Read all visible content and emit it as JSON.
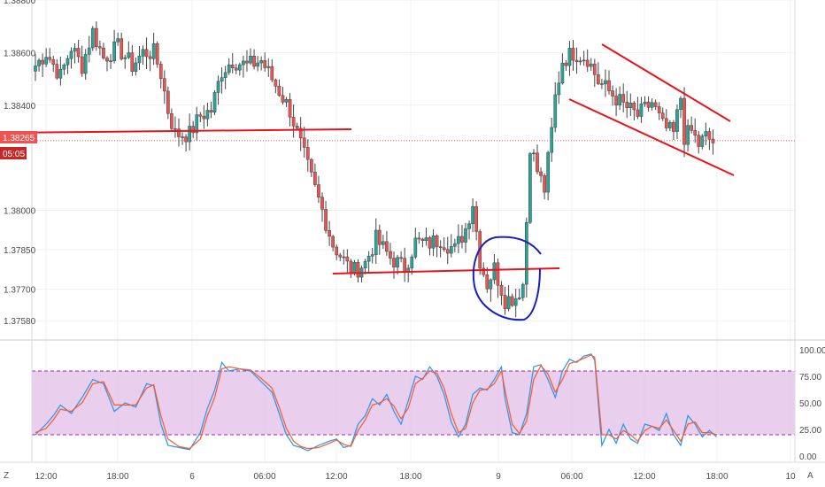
{
  "colors": {
    "up": "#26a69a",
    "down": "#ef5350",
    "wick": "#444444",
    "annotation_red": "#e8141b",
    "annotation_blue": "#1a1fc4",
    "stoch_k": "#2196f3",
    "stoch_d": "#ff5722",
    "stoch_band": "#e1bee7",
    "stoch_band_line": "#9c27b0",
    "grid": "#eef0f4",
    "price_line": "#ef5350",
    "badge_bg": "#ef5350",
    "badge_time_bg": "#c62828"
  },
  "chart_data": [
    {
      "type": "candlestick",
      "title": "",
      "ylim": [
        1.3752,
        1.388
      ],
      "y_tick_labels": [
        "1.38800",
        "1.38600",
        "1.38400",
        "1.38000",
        "1.37850",
        "1.37700",
        "1.37580"
      ],
      "y_tick_values": [
        1.388,
        1.386,
        1.384,
        1.38,
        1.3785,
        1.377,
        1.3758
      ],
      "x_tick_labels": [
        "12:00",
        "18:00",
        "6",
        "06:00",
        "12:00",
        "18:00",
        "9",
        "06:00",
        "12:00",
        "18:00",
        "10"
      ],
      "current_price": "1.38265",
      "countdown": "05:05",
      "path": [
        [
          0,
          1.3855
        ],
        [
          3,
          1.386
        ],
        [
          7,
          1.3851
        ],
        [
          10,
          1.3862
        ],
        [
          13,
          1.3855
        ],
        [
          16,
          1.3868
        ],
        [
          19,
          1.3858
        ],
        [
          23,
          1.3862
        ],
        [
          27,
          1.3855
        ],
        [
          30,
          1.386
        ],
        [
          33,
          1.386
        ],
        [
          35,
          1.3852
        ],
        [
          37,
          1.3838
        ],
        [
          39,
          1.3829
        ],
        [
          43,
          1.3829
        ],
        [
          46,
          1.3836
        ],
        [
          49,
          1.3838
        ],
        [
          52,
          1.3853
        ],
        [
          55,
          1.3857
        ],
        [
          59,
          1.3855
        ],
        [
          63,
          1.3857
        ],
        [
          66,
          1.385
        ],
        [
          69,
          1.3843
        ],
        [
          71,
          1.3838
        ],
        [
          74,
          1.3825
        ],
        [
          77,
          1.3812
        ],
        [
          80,
          1.38
        ],
        [
          83,
          1.3787
        ],
        [
          87,
          1.3779
        ],
        [
          89,
          1.3777
        ],
        [
          92,
          1.378
        ],
        [
          95,
          1.3789
        ],
        [
          99,
          1.3782
        ],
        [
          103,
          1.3778
        ],
        [
          106,
          1.3788
        ],
        [
          109,
          1.3787
        ],
        [
          113,
          1.3789
        ],
        [
          117,
          1.3785
        ],
        [
          120,
          1.3793
        ],
        [
          122,
          1.3803
        ],
        [
          124,
          1.3781
        ],
        [
          126,
          1.3772
        ],
        [
          128,
          1.3778
        ],
        [
          131,
          1.3766
        ],
        [
          134,
          1.3767
        ],
        [
          136,
          1.3772
        ],
        [
          137,
          1.3796
        ],
        [
          138,
          1.3825
        ],
        [
          140,
          1.3815
        ],
        [
          142,
          1.3808
        ],
        [
          144,
          1.383
        ],
        [
          145,
          1.3843
        ],
        [
          147,
          1.3857
        ],
        [
          150,
          1.386
        ],
        [
          154,
          1.3858
        ],
        [
          157,
          1.3849
        ],
        [
          161,
          1.3844
        ],
        [
          164,
          1.384
        ],
        [
          168,
          1.3836
        ],
        [
          172,
          1.3841
        ],
        [
          175,
          1.3832
        ],
        [
          178,
          1.3829
        ],
        [
          180,
          1.3843
        ],
        [
          181,
          1.3828
        ],
        [
          183,
          1.383
        ],
        [
          185,
          1.3825
        ],
        [
          187,
          1.3828
        ],
        [
          189,
          1.3826
        ]
      ]
    },
    {
      "type": "line",
      "title": "",
      "ylim": [
        0,
        100
      ],
      "y_tick_labels": [
        "100.00",
        "75.00",
        "50.00",
        "25.00",
        "0.00"
      ],
      "y_tick_values": [
        100,
        75,
        50,
        25,
        0
      ],
      "band": [
        20,
        80
      ],
      "series": [
        {
          "values": [
            [
              0,
              20
            ],
            [
              3,
              30
            ],
            [
              5,
              38
            ],
            [
              7,
              48
            ],
            [
              10,
              40
            ],
            [
              13,
              55
            ],
            [
              16,
              72
            ],
            [
              19,
              68
            ],
            [
              22,
              42
            ],
            [
              25,
              50
            ],
            [
              28,
              46
            ],
            [
              31,
              68
            ],
            [
              33,
              66
            ],
            [
              35,
              30
            ],
            [
              37,
              10
            ],
            [
              40,
              8
            ],
            [
              43,
              6
            ],
            [
              46,
              22
            ],
            [
              48,
              45
            ],
            [
              50,
              62
            ],
            [
              52,
              88
            ],
            [
              54,
              80
            ],
            [
              57,
              82
            ],
            [
              60,
              80
            ],
            [
              63,
              70
            ],
            [
              66,
              60
            ],
            [
              68,
              40
            ],
            [
              70,
              20
            ],
            [
              72,
              10
            ],
            [
              74,
              8
            ],
            [
              76,
              5
            ],
            [
              79,
              10
            ],
            [
              82,
              14
            ],
            [
              84,
              16
            ],
            [
              86,
              8
            ],
            [
              88,
              10
            ],
            [
              90,
              30
            ],
            [
              92,
              38
            ],
            [
              94,
              54
            ],
            [
              96,
              48
            ],
            [
              98,
              58
            ],
            [
              100,
              42
            ],
            [
              102,
              30
            ],
            [
              104,
              52
            ],
            [
              106,
              75
            ],
            [
              108,
              72
            ],
            [
              110,
              84
            ],
            [
              112,
              75
            ],
            [
              114,
              58
            ],
            [
              116,
              32
            ],
            [
              118,
              18
            ],
            [
              120,
              30
            ],
            [
              122,
              58
            ],
            [
              124,
              64
            ],
            [
              126,
              62
            ],
            [
              128,
              72
            ],
            [
              130,
              84
            ],
            [
              131,
              54
            ],
            [
              133,
              22
            ],
            [
              135,
              20
            ],
            [
              137,
              40
            ],
            [
              139,
              84
            ],
            [
              141,
              86
            ],
            [
              143,
              72
            ],
            [
              145,
              55
            ],
            [
              147,
              80
            ],
            [
              149,
              91
            ],
            [
              151,
              88
            ],
            [
              153,
              94
            ],
            [
              155,
              96
            ],
            [
              156,
              90
            ],
            [
              158,
              10
            ],
            [
              160,
              25
            ],
            [
              162,
              12
            ],
            [
              164,
              30
            ],
            [
              166,
              16
            ],
            [
              168,
              12
            ],
            [
              170,
              30
            ],
            [
              172,
              28
            ],
            [
              174,
              24
            ],
            [
              176,
              40
            ],
            [
              178,
              20
            ],
            [
              180,
              10
            ],
            [
              182,
              38
            ],
            [
              184,
              30
            ],
            [
              186,
              18
            ],
            [
              188,
              24
            ],
            [
              190,
              18
            ]
          ]
        },
        {
          "values": [
            [
              0,
              22
            ],
            [
              3,
              26
            ],
            [
              5,
              34
            ],
            [
              7,
              44
            ],
            [
              10,
              42
            ],
            [
              13,
              50
            ],
            [
              16,
              68
            ],
            [
              19,
              70
            ],
            [
              22,
              48
            ],
            [
              25,
              48
            ],
            [
              28,
              48
            ],
            [
              31,
              64
            ],
            [
              33,
              67
            ],
            [
              35,
              38
            ],
            [
              37,
              16
            ],
            [
              40,
              9
            ],
            [
              43,
              7
            ],
            [
              46,
              16
            ],
            [
              48,
              38
            ],
            [
              50,
              55
            ],
            [
              52,
              82
            ],
            [
              54,
              84
            ],
            [
              57,
              82
            ],
            [
              60,
              81
            ],
            [
              63,
              73
            ],
            [
              66,
              64
            ],
            [
              68,
              46
            ],
            [
              70,
              26
            ],
            [
              72,
              14
            ],
            [
              74,
              9
            ],
            [
              76,
              7
            ],
            [
              79,
              8
            ],
            [
              82,
              12
            ],
            [
              84,
              15
            ],
            [
              86,
              11
            ],
            [
              88,
              9
            ],
            [
              90,
              24
            ],
            [
              92,
              34
            ],
            [
              94,
              48
            ],
            [
              96,
              50
            ],
            [
              98,
              54
            ],
            [
              100,
              47
            ],
            [
              102,
              35
            ],
            [
              104,
              45
            ],
            [
              106,
              68
            ],
            [
              108,
              73
            ],
            [
              110,
              80
            ],
            [
              112,
              78
            ],
            [
              114,
              64
            ],
            [
              116,
              40
            ],
            [
              118,
              22
            ],
            [
              120,
              26
            ],
            [
              122,
              50
            ],
            [
              124,
              62
            ],
            [
              126,
              63
            ],
            [
              128,
              68
            ],
            [
              130,
              80
            ],
            [
              131,
              62
            ],
            [
              133,
              30
            ],
            [
              135,
              21
            ],
            [
              137,
              33
            ],
            [
              139,
              72
            ],
            [
              141,
              85
            ],
            [
              143,
              77
            ],
            [
              145,
              60
            ],
            [
              147,
              72
            ],
            [
              149,
              87
            ],
            [
              151,
              89
            ],
            [
              153,
              92
            ],
            [
              155,
              95
            ],
            [
              156,
              93
            ],
            [
              158,
              20
            ],
            [
              160,
              20
            ],
            [
              162,
              16
            ],
            [
              164,
              24
            ],
            [
              166,
              20
            ],
            [
              168,
              14
            ],
            [
              170,
              24
            ],
            [
              172,
              28
            ],
            [
              174,
              26
            ],
            [
              176,
              34
            ],
            [
              178,
              24
            ],
            [
              180,
              14
            ],
            [
              182,
              30
            ],
            [
              184,
              32
            ],
            [
              186,
              22
            ],
            [
              188,
              22
            ],
            [
              190,
              20
            ]
          ]
        }
      ]
    }
  ],
  "toolbar": {
    "left_button": "Z",
    "right_button": "A"
  }
}
